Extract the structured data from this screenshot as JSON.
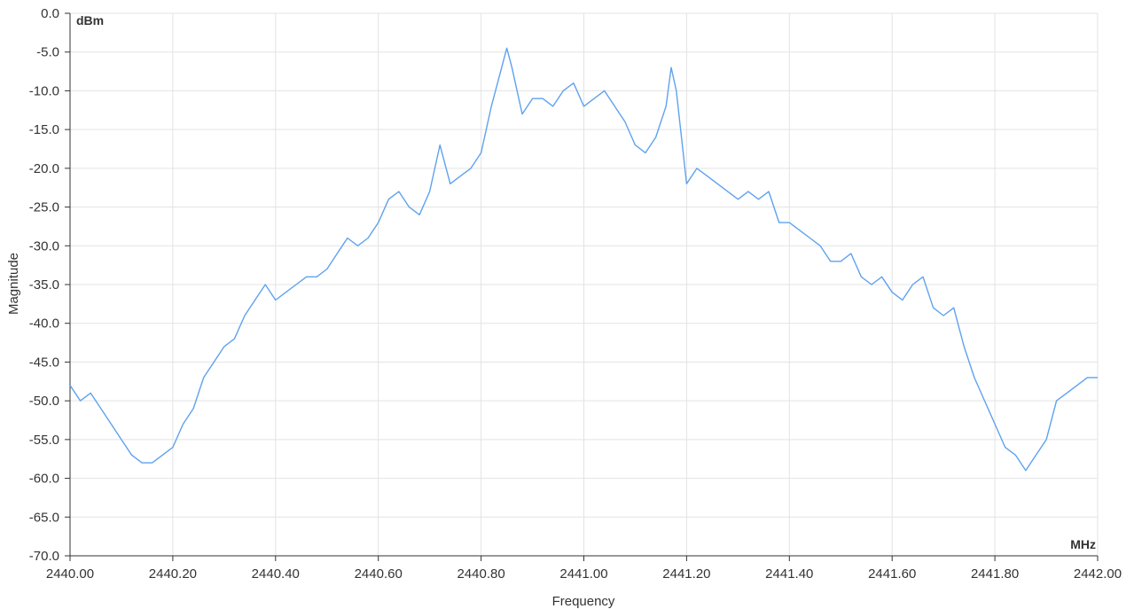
{
  "chart_data": {
    "type": "line",
    "xlabel": "Frequency",
    "ylabel": "Magnitude",
    "x_unit_label": "MHz ",
    "y_unit_label": " dBm",
    "xlim": [
      2440.0,
      2442.0
    ],
    "ylim": [
      -70.0,
      0.0
    ],
    "x_ticks": [
      "2440.00",
      "2440.20",
      "2440.40",
      "2440.60",
      "2440.80",
      "2441.00",
      "2441.20",
      "2441.40",
      "2441.60",
      "2441.80",
      "2442.00"
    ],
    "y_ticks": [
      "0.0",
      "-5.0",
      "-10.0",
      "-15.0",
      "-20.0",
      "-25.0",
      "-30.0",
      "-35.0",
      "-40.0",
      "-45.0",
      "-50.0",
      "-55.0",
      "-60.0",
      "-65.0",
      "-70.0"
    ],
    "grid": true,
    "line_color": "#5ea2ef",
    "series": [
      {
        "x": [
          2440.0,
          2440.02,
          2440.04,
          2440.06,
          2440.08,
          2440.1,
          2440.12,
          2440.14,
          2440.16,
          2440.18,
          2440.2,
          2440.22,
          2440.24,
          2440.26,
          2440.28,
          2440.3,
          2440.32,
          2440.34,
          2440.36,
          2440.38,
          2440.4,
          2440.42,
          2440.44,
          2440.46,
          2440.48,
          2440.5,
          2440.52,
          2440.54,
          2440.56,
          2440.58,
          2440.6,
          2440.62,
          2440.64,
          2440.66,
          2440.68,
          2440.7,
          2440.72,
          2440.74,
          2440.76,
          2440.78,
          2440.8,
          2440.82,
          2440.84,
          2440.85,
          2440.86,
          2440.88,
          2440.9,
          2440.92,
          2440.94,
          2440.96,
          2440.98,
          2441.0,
          2441.02,
          2441.04,
          2441.06,
          2441.08,
          2441.1,
          2441.12,
          2441.14,
          2441.16,
          2441.17,
          2441.18,
          2441.2,
          2441.22,
          2441.24,
          2441.26,
          2441.28,
          2441.3,
          2441.32,
          2441.34,
          2441.36,
          2441.38,
          2441.4,
          2441.42,
          2441.44,
          2441.46,
          2441.48,
          2441.5,
          2441.52,
          2441.54,
          2441.56,
          2441.58,
          2441.6,
          2441.62,
          2441.64,
          2441.66,
          2441.68,
          2441.7,
          2441.72,
          2441.74,
          2441.76,
          2441.78,
          2441.8,
          2441.82,
          2441.84,
          2441.86,
          2441.88,
          2441.9,
          2441.92,
          2441.94,
          2441.96,
          2441.98,
          2442.0
        ],
        "y": [
          -48,
          -50,
          -49,
          -51,
          -53,
          -55,
          -57,
          -58,
          -58,
          -57,
          -56,
          -53,
          -51,
          -47,
          -45,
          -43,
          -42,
          -39,
          -37,
          -35,
          -37,
          -36,
          -35,
          -34,
          -34,
          -33,
          -31,
          -29,
          -30,
          -29,
          -27,
          -24,
          -23,
          -25,
          -26,
          -23,
          -17,
          -22,
          -21,
          -20,
          -18,
          -12,
          -7,
          -4.5,
          -7,
          -13,
          -11,
          -11,
          -12,
          -10,
          -9,
          -12,
          -11,
          -10,
          -12,
          -14,
          -17,
          -18,
          -16,
          -12,
          -7,
          -10,
          -22,
          -20,
          -21,
          -22,
          -23,
          -24,
          -23,
          -24,
          -23,
          -27,
          -27,
          -28,
          -29,
          -30,
          -32,
          -32,
          -31,
          -34,
          -35,
          -34,
          -36,
          -37,
          -35,
          -34,
          -38,
          -39,
          -38,
          -43,
          -47,
          -50,
          -53,
          -56,
          -57,
          -59,
          -57,
          -55,
          -50,
          -49,
          -48,
          -47,
          -47
        ]
      }
    ]
  }
}
